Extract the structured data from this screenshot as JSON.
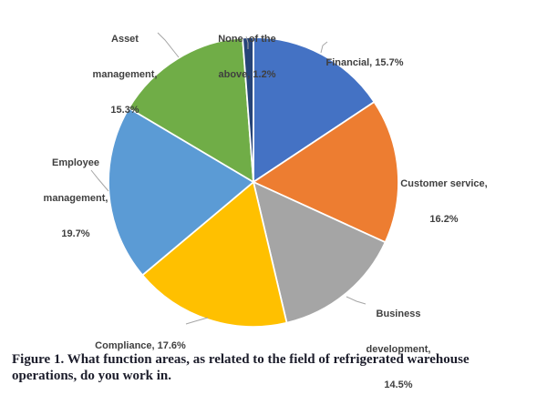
{
  "chart_data": {
    "type": "pie",
    "title": "",
    "categories": [
      "Financial",
      "Customer service",
      "Business development",
      "Compliance",
      "Employee management",
      "Asset management",
      "None of the above"
    ],
    "values": [
      15.7,
      16.2,
      14.5,
      17.6,
      19.7,
      15.3,
      1.2
    ],
    "unit": "%",
    "start_angle_deg": 0,
    "direction": "clockwise",
    "legend": "none",
    "slices": [
      {
        "label": "Financial",
        "value": 15.7,
        "color": "#4472C4",
        "lines": [
          "Financial, 15.7%"
        ]
      },
      {
        "label": "Customer service",
        "value": 16.2,
        "color": "#ED7D31",
        "lines": [
          "Customer service,",
          "16.2%"
        ]
      },
      {
        "label": "Business development",
        "value": 14.5,
        "color": "#A5A5A5",
        "lines": [
          "Business",
          "development,",
          "14.5%"
        ]
      },
      {
        "label": "Compliance",
        "value": 17.6,
        "color": "#FFC000",
        "lines": [
          "Compliance, 17.6%"
        ]
      },
      {
        "label": "Employee management",
        "value": 19.7,
        "color": "#5B9BD5",
        "lines": [
          "Employee",
          "management,",
          "19.7%"
        ]
      },
      {
        "label": "Asset management",
        "value": 15.3,
        "color": "#70AD47",
        "lines": [
          "Asset",
          "management,",
          "15.3%"
        ]
      },
      {
        "label": "None of the above",
        "value": 1.2,
        "color": "#264478",
        "lines": [
          "None  of the",
          "above, 1.2%"
        ]
      }
    ]
  },
  "caption": {
    "lines": [
      "Figure 1. What function areas, as related to the field of refrigerated warehouse",
      "operations, do you work in."
    ]
  }
}
